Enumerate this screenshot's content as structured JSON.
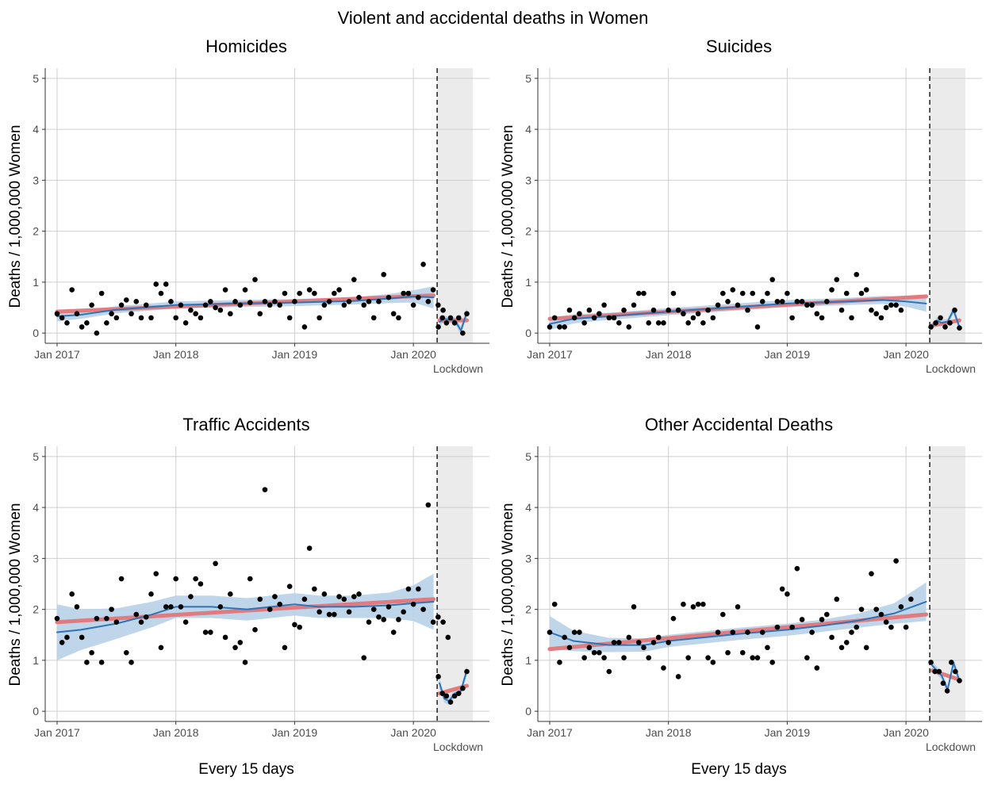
{
  "figure": {
    "title": "Violent and accidental deaths in Women",
    "ylabel": "Deaths / 1,000,000 Women",
    "xlabel": "Every 15 days",
    "lockdown_label": "Lockdown",
    "colors": {
      "points": "#000000",
      "loess": "#2e75b6",
      "loess_band": "#b8d0e8",
      "linear": "#e07b80",
      "lockdown_shade": "#ebebeb",
      "grid": "#cfcfcf"
    }
  },
  "chart_data": [
    {
      "type": "scatter",
      "title": "Homicides",
      "xlim": [
        2016.9,
        2020.5
      ],
      "ylim": [
        -0.2,
        5.2
      ],
      "x_ticks": [
        {
          "v": 2017,
          "label": "Jan 2017"
        },
        {
          "v": 2018,
          "label": "Jan 2018"
        },
        {
          "v": 2019,
          "label": "Jan 2019"
        },
        {
          "v": 2020,
          "label": "Jan 2020"
        }
      ],
      "y_ticks": [
        0,
        1,
        2,
        3,
        4,
        5
      ],
      "lockdown_start": 2020.2,
      "points_pre": [
        0.38,
        0.3,
        0.2,
        0.85,
        0.38,
        0.12,
        0.2,
        0.55,
        0.0,
        0.78,
        0.2,
        0.38,
        0.3,
        0.55,
        0.65,
        0.38,
        0.62,
        0.3,
        0.55,
        0.3,
        0.96,
        0.78,
        0.96,
        0.62,
        0.3,
        0.55,
        0.2,
        0.45,
        0.38,
        0.3,
        0.55,
        0.62,
        0.5,
        0.45,
        0.85,
        0.38,
        0.62,
        0.55,
        0.85,
        0.6,
        1.05,
        0.38,
        0.62,
        0.55,
        0.62,
        0.55,
        0.78,
        0.3,
        0.62,
        0.78,
        0.12,
        0.85,
        0.78,
        0.3,
        0.55,
        0.62,
        0.78,
        0.85,
        0.55,
        0.62,
        1.05,
        0.7,
        0.55,
        0.62,
        0.3,
        0.62,
        1.15,
        0.7,
        0.38,
        0.3,
        0.78,
        0.78,
        0.55,
        0.7,
        1.35,
        0.62,
        0.85,
        0.55,
        0.45
      ],
      "points_post": [
        0.12,
        0.3,
        0.2,
        0.3,
        0.2,
        0.3,
        0.0,
        0.38
      ],
      "linear_pre": [
        [
          2017.0,
          0.42
        ],
        [
          2020.17,
          0.74
        ]
      ],
      "linear_post": [
        [
          2020.22,
          0.25
        ],
        [
          2020.45,
          0.25
        ]
      ],
      "loess_pre": [
        [
          2017.0,
          0.33
        ],
        [
          2017.2,
          0.36
        ],
        [
          2017.5,
          0.46
        ],
        [
          2018.0,
          0.55
        ],
        [
          2018.5,
          0.58
        ],
        [
          2019.0,
          0.6
        ],
        [
          2019.5,
          0.63
        ],
        [
          2019.8,
          0.68
        ],
        [
          2020.0,
          0.72
        ],
        [
          2020.17,
          0.7
        ]
      ],
      "loess_post": [
        [
          2020.22,
          0.22
        ],
        [
          2020.26,
          0.28
        ],
        [
          2020.3,
          0.26
        ],
        [
          2020.35,
          0.25
        ],
        [
          2020.4,
          0.05
        ],
        [
          2020.45,
          0.4
        ]
      ],
      "band_pre_halfwidth": [
        0.1,
        0.08,
        0.07,
        0.07,
        0.07,
        0.07,
        0.07,
        0.09,
        0.12,
        0.22
      ],
      "band_post_halfwidth": [
        0.08,
        0.06,
        0.06,
        0.06,
        0.08,
        0.1
      ]
    },
    {
      "type": "scatter",
      "title": "Suicides",
      "xlim": [
        2016.9,
        2020.5
      ],
      "ylim": [
        -0.2,
        5.2
      ],
      "x_ticks": [
        {
          "v": 2017,
          "label": "Jan 2017"
        },
        {
          "v": 2018,
          "label": "Jan 2018"
        },
        {
          "v": 2019,
          "label": "Jan 2019"
        },
        {
          "v": 2020,
          "label": "Jan 2020"
        }
      ],
      "y_ticks": [
        0,
        1,
        2,
        3,
        4,
        5
      ],
      "lockdown_start": 2020.2,
      "points_pre": [
        0.12,
        0.3,
        0.12,
        0.12,
        0.45,
        0.3,
        0.38,
        0.2,
        0.45,
        0.3,
        0.38,
        0.55,
        0.3,
        0.3,
        0.2,
        0.45,
        0.12,
        0.55,
        0.78,
        0.78,
        0.2,
        0.45,
        0.2,
        0.2,
        0.45,
        0.78,
        0.45,
        0.38,
        0.2,
        0.3,
        0.38,
        0.2,
        0.45,
        0.3,
        0.55,
        0.78,
        0.62,
        0.85,
        0.55,
        0.78,
        0.45,
        0.78,
        0.12,
        0.62,
        0.78,
        1.05,
        0.62,
        0.62,
        0.78,
        0.3,
        0.62,
        0.62,
        0.55,
        0.55,
        0.38,
        0.3,
        0.62,
        0.85,
        1.05,
        0.45,
        0.78,
        0.3,
        1.15,
        0.78,
        0.85,
        0.45,
        0.38,
        0.3,
        0.5,
        0.55,
        0.55,
        0.45
      ],
      "points_post": [
        0.12,
        0.2,
        0.3,
        0.12,
        0.2,
        0.45,
        0.1
      ],
      "linear_pre": [
        [
          2017.0,
          0.28
        ],
        [
          2020.17,
          0.72
        ]
      ],
      "linear_post": [
        [
          2020.22,
          0.15
        ],
        [
          2020.45,
          0.25
        ]
      ],
      "loess_pre": [
        [
          2017.0,
          0.18
        ],
        [
          2017.2,
          0.28
        ],
        [
          2017.5,
          0.33
        ],
        [
          2018.0,
          0.42
        ],
        [
          2018.5,
          0.5
        ],
        [
          2019.0,
          0.58
        ],
        [
          2019.5,
          0.62
        ],
        [
          2019.8,
          0.65
        ],
        [
          2020.0,
          0.62
        ],
        [
          2020.17,
          0.58
        ]
      ],
      "loess_post": [
        [
          2020.22,
          0.12
        ],
        [
          2020.26,
          0.25
        ],
        [
          2020.3,
          0.2
        ],
        [
          2020.35,
          0.22
        ],
        [
          2020.4,
          0.45
        ],
        [
          2020.45,
          0.12
        ]
      ],
      "band_pre_halfwidth": [
        0.12,
        0.09,
        0.07,
        0.07,
        0.07,
        0.07,
        0.07,
        0.08,
        0.1,
        0.16
      ],
      "band_post_halfwidth": [
        0.06,
        0.06,
        0.06,
        0.06,
        0.08,
        0.08
      ]
    },
    {
      "type": "scatter",
      "title": "Traffic Accidents",
      "xlim": [
        2016.9,
        2020.5
      ],
      "ylim": [
        -0.2,
        5.2
      ],
      "x_ticks": [
        {
          "v": 2017,
          "label": "Jan 2017"
        },
        {
          "v": 2018,
          "label": "Jan 2018"
        },
        {
          "v": 2019,
          "label": "Jan 2019"
        },
        {
          "v": 2020,
          "label": "Jan 2020"
        }
      ],
      "y_ticks": [
        0,
        1,
        2,
        3,
        4,
        5
      ],
      "lockdown_start": 2020.2,
      "points_pre": [
        1.82,
        1.35,
        1.45,
        2.3,
        2.05,
        1.45,
        0.96,
        1.15,
        1.82,
        0.96,
        1.82,
        2.0,
        1.75,
        2.6,
        1.15,
        0.96,
        1.9,
        1.75,
        1.85,
        2.3,
        2.7,
        1.25,
        2.05,
        2.05,
        2.6,
        2.05,
        1.75,
        2.25,
        2.6,
        2.5,
        1.55,
        1.55,
        2.9,
        2.05,
        1.45,
        2.3,
        1.25,
        1.35,
        0.96,
        2.6,
        1.6,
        2.2,
        4.35,
        2.0,
        2.25,
        2.1,
        1.25,
        2.45,
        1.7,
        1.65,
        2.2,
        3.2,
        2.4,
        1.95,
        2.3,
        1.9,
        1.9,
        2.25,
        2.2,
        1.95,
        2.25,
        2.3,
        1.05,
        1.75,
        2.0,
        1.85,
        1.8,
        2.05,
        1.55,
        1.8,
        1.95,
        2.4,
        2.1,
        2.4,
        2.0,
        4.05,
        1.75,
        1.85,
        1.75,
        1.45
      ],
      "points_post": [
        0.68,
        0.35,
        0.3,
        0.18,
        0.3,
        0.35,
        0.45,
        0.78
      ],
      "linear_pre": [
        [
          2017.0,
          1.75
        ],
        [
          2020.17,
          2.2
        ]
      ],
      "linear_post": [
        [
          2020.22,
          0.35
        ],
        [
          2020.45,
          0.5
        ]
      ],
      "loess_pre": [
        [
          2017.0,
          1.55
        ],
        [
          2017.2,
          1.6
        ],
        [
          2017.5,
          1.72
        ],
        [
          2017.8,
          1.9
        ],
        [
          2018.0,
          2.05
        ],
        [
          2018.3,
          2.05
        ],
        [
          2018.6,
          2.0
        ],
        [
          2019.0,
          2.1
        ],
        [
          2019.2,
          2.05
        ],
        [
          2019.5,
          2.05
        ],
        [
          2019.8,
          2.08
        ],
        [
          2020.0,
          2.12
        ],
        [
          2020.17,
          2.15
        ]
      ],
      "loess_post": [
        [
          2020.22,
          0.55
        ],
        [
          2020.26,
          0.25
        ],
        [
          2020.3,
          0.2
        ],
        [
          2020.35,
          0.35
        ],
        [
          2020.4,
          0.4
        ],
        [
          2020.45,
          0.8
        ]
      ],
      "band_pre_halfwidth": [
        0.55,
        0.4,
        0.3,
        0.25,
        0.22,
        0.22,
        0.22,
        0.22,
        0.22,
        0.22,
        0.25,
        0.35,
        0.55
      ],
      "band_post_halfwidth": [
        0.1,
        0.08,
        0.08,
        0.08,
        0.08,
        0.1
      ]
    },
    {
      "type": "scatter",
      "title": "Other Accidental Deaths",
      "xlim": [
        2016.9,
        2020.5
      ],
      "ylim": [
        -0.2,
        5.2
      ],
      "x_ticks": [
        {
          "v": 2017,
          "label": "Jan 2017"
        },
        {
          "v": 2018,
          "label": "Jan 2018"
        },
        {
          "v": 2019,
          "label": "Jan 2019"
        },
        {
          "v": 2020,
          "label": "Jan 2020"
        }
      ],
      "y_ticks": [
        0,
        1,
        2,
        3,
        4,
        5
      ],
      "lockdown_start": 2020.2,
      "points_pre": [
        1.55,
        2.1,
        0.96,
        1.45,
        1.25,
        1.55,
        1.55,
        1.05,
        1.25,
        1.15,
        1.15,
        1.05,
        0.78,
        1.35,
        1.35,
        1.05,
        1.45,
        2.05,
        1.35,
        1.25,
        1.05,
        1.35,
        1.45,
        0.85,
        1.35,
        1.82,
        0.68,
        2.1,
        1.05,
        2.05,
        2.1,
        2.1,
        1.05,
        0.96,
        1.55,
        1.9,
        1.15,
        1.55,
        2.05,
        1.15,
        1.55,
        1.05,
        1.05,
        1.55,
        1.25,
        0.96,
        1.65,
        2.4,
        2.3,
        1.65,
        2.8,
        1.8,
        1.05,
        1.55,
        0.85,
        1.8,
        1.9,
        1.45,
        2.2,
        1.25,
        1.35,
        1.55,
        1.65,
        2.0,
        1.25,
        2.7,
        2.0,
        1.9,
        1.75,
        1.65,
        2.95,
        2.05,
        1.65,
        2.2
      ],
      "points_post": [
        0.96,
        0.78,
        0.78,
        0.55,
        0.4,
        0.96,
        0.78,
        0.6
      ],
      "linear_pre": [
        [
          2017.0,
          1.22
        ],
        [
          2020.17,
          1.9
        ]
      ],
      "linear_post": [
        [
          2020.22,
          0.8
        ],
        [
          2020.45,
          0.62
        ]
      ],
      "loess_pre": [
        [
          2017.0,
          1.55
        ],
        [
          2017.2,
          1.38
        ],
        [
          2017.5,
          1.3
        ],
        [
          2017.8,
          1.3
        ],
        [
          2018.0,
          1.38
        ],
        [
          2018.3,
          1.45
        ],
        [
          2018.6,
          1.52
        ],
        [
          2019.0,
          1.6
        ],
        [
          2019.3,
          1.68
        ],
        [
          2019.6,
          1.78
        ],
        [
          2019.9,
          1.92
        ],
        [
          2020.17,
          2.15
        ]
      ],
      "loess_post": [
        [
          2020.22,
          0.9
        ],
        [
          2020.26,
          0.8
        ],
        [
          2020.3,
          0.7
        ],
        [
          2020.35,
          0.42
        ],
        [
          2020.4,
          0.95
        ],
        [
          2020.45,
          0.6
        ]
      ],
      "band_pre_halfwidth": [
        0.32,
        0.2,
        0.14,
        0.13,
        0.12,
        0.12,
        0.12,
        0.12,
        0.12,
        0.14,
        0.2,
        0.38
      ],
      "band_post_halfwidth": [
        0.08,
        0.08,
        0.08,
        0.08,
        0.08,
        0.08
      ]
    }
  ]
}
